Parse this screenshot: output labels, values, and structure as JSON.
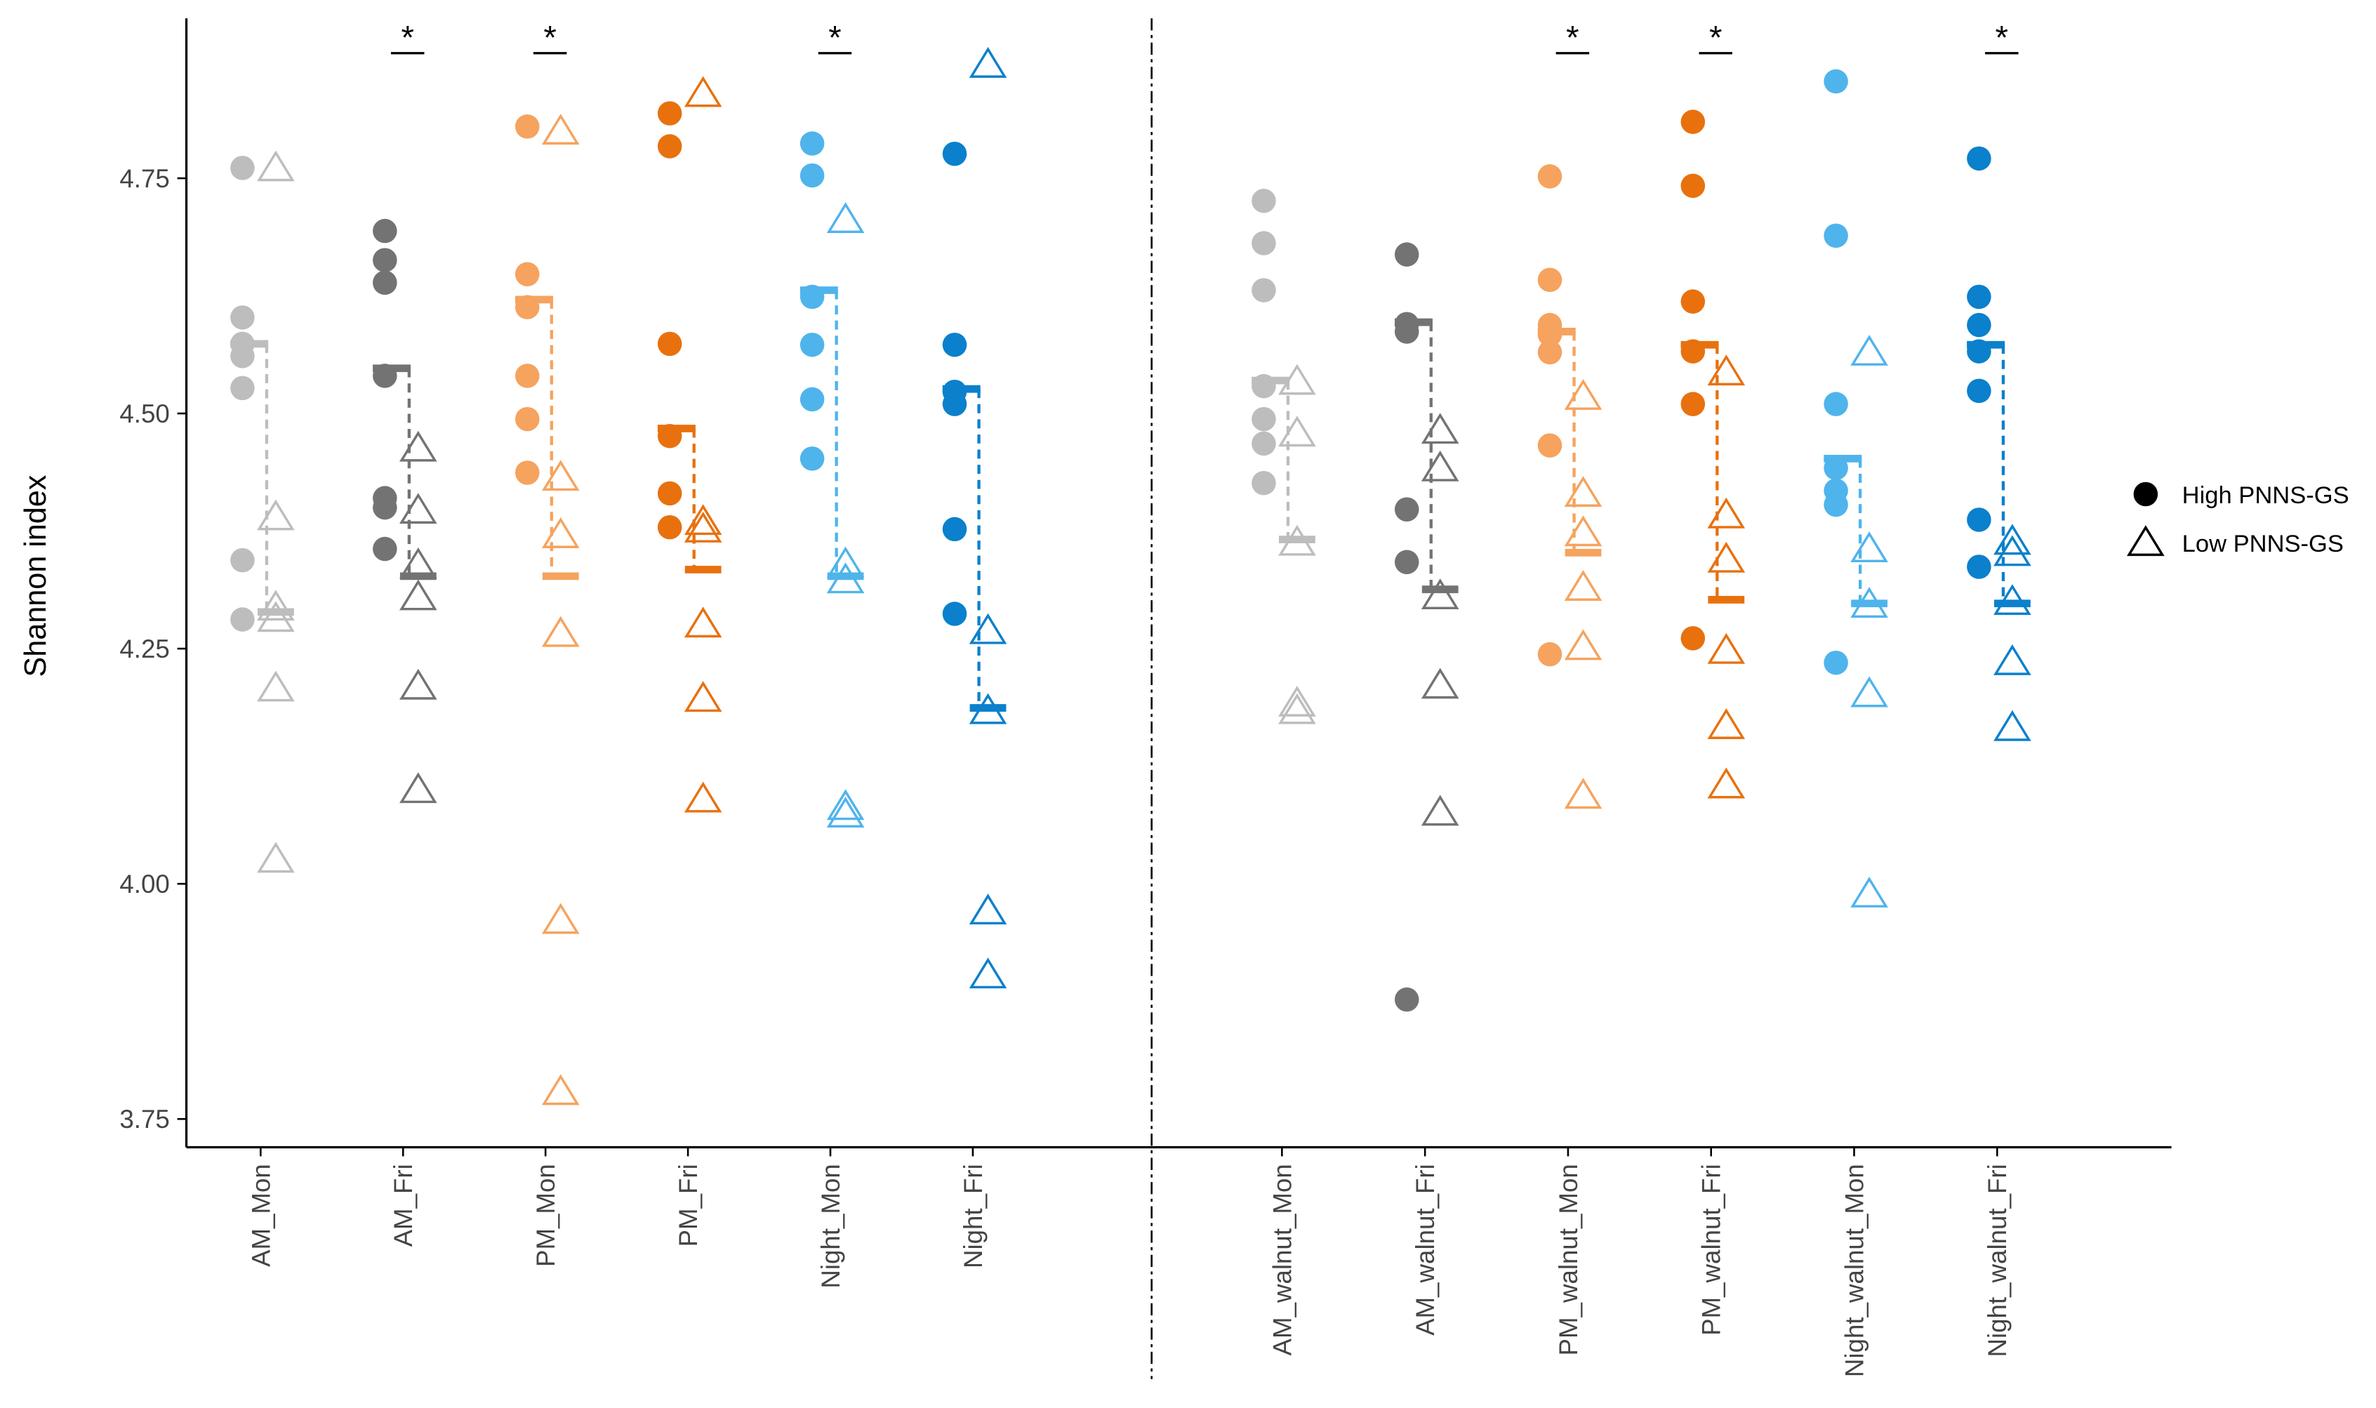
{
  "chart_data": {
    "type": "strip",
    "y_label": "Shannon index",
    "categories": [
      "AM_Mon",
      "AM_Fri",
      "PM_Mon",
      "PM_Fri",
      "Night_Mon",
      "Night_Fri",
      "AM_walnut_Mon",
      "AM_walnut_Fri",
      "PM_walnut_Mon",
      "PM_walnut_Fri",
      "Night_walnut_Mon",
      "Night_walnut_Fri"
    ],
    "colors": [
      "#bdbdbd",
      "#737373",
      "#f5a35e",
      "#e8710e",
      "#4fb4ec",
      "#0b80cc",
      "#bdbdbd",
      "#737373",
      "#f5a35e",
      "#e8710e",
      "#4fb4ec",
      "#0b80cc"
    ],
    "significance": [
      null,
      "*",
      "*",
      null,
      "*",
      null,
      null,
      null,
      "*",
      "*",
      null,
      "*"
    ],
    "ylim": [
      3.72,
      4.92
    ],
    "yticks": [
      3.75,
      {
        "value": 4,
        "label": "4.00"
      },
      4.25,
      {
        "value": 4.5,
        "label": "4.50"
      },
      4.75
    ],
    "legend_position": "right",
    "series": [
      {
        "name": "High PNNS-GS",
        "marker": "circle",
        "color": "#000000",
        "values": [
          [
            4.761,
            4.602,
            4.574,
            4.561,
            4.527,
            4.344,
            4.281
          ],
          [
            4.694,
            4.663,
            4.639,
            4.54,
            4.41,
            4.4,
            4.356
          ],
          [
            4.805,
            4.648,
            4.613,
            4.54,
            4.494,
            4.437
          ],
          [
            4.819,
            4.784,
            4.574,
            4.476,
            4.415,
            4.379
          ],
          [
            4.787,
            4.753,
            4.624,
            4.573,
            4.515,
            4.452
          ],
          [
            4.776,
            4.573,
            4.523,
            4.51,
            4.377,
            4.287
          ],
          [
            4.726,
            4.681,
            4.631,
            4.529,
            4.494,
            4.468,
            4.426
          ],
          [
            4.669,
            4.595,
            4.587,
            4.398,
            4.342,
            3.877
          ],
          [
            4.752,
            4.642,
            4.594,
            4.584,
            4.565,
            4.466,
            4.244
          ],
          [
            4.81,
            4.742,
            4.619,
            4.566,
            4.51,
            4.261
          ],
          [
            4.853,
            4.689,
            4.51,
            4.442,
            4.418,
            4.403,
            4.235
          ],
          [
            4.771,
            4.624,
            4.594,
            4.566,
            4.524,
            4.387,
            4.337
          ]
        ],
        "medians": [
          4.574,
          4.548,
          4.621,
          4.484,
          4.631,
          4.526,
          4.535,
          4.597,
          4.587,
          4.573,
          4.452,
          4.573
        ]
      },
      {
        "name": "Low PNNS-GS",
        "marker": "triangle",
        "color": "#000000",
        "values": [
          [
            4.761,
            4.39,
            4.294,
            4.282,
            4.208,
            4.026
          ],
          [
            4.463,
            4.397,
            4.339,
            4.305,
            4.21,
            4.1
          ],
          [
            4.8,
            4.432,
            4.371,
            4.266,
            3.961,
            3.779
          ],
          [
            4.84,
            4.385,
            4.377,
            4.276,
            4.197,
            4.09
          ],
          [
            4.706,
            4.34,
            4.323,
            4.082,
            4.074
          ],
          [
            4.871,
            4.269,
            4.184,
            3.971,
            3.903
          ],
          [
            4.534,
            4.479,
            4.363,
            4.192,
            4.184
          ],
          [
            4.482,
            4.442,
            4.306,
            4.211,
            4.076
          ],
          [
            4.518,
            4.415,
            4.373,
            4.315,
            4.252,
            4.094
          ],
          [
            4.544,
            4.392,
            4.345,
            4.248,
            4.168,
            4.105
          ],
          [
            4.565,
            4.356,
            4.297,
            4.202,
            3.989
          ],
          [
            4.364,
            4.352,
            4.3,
            4.236,
            4.166
          ]
        ],
        "medians": [
          4.289,
          4.327,
          4.327,
          4.334,
          4.327,
          4.187,
          4.366,
          4.313,
          4.352,
          4.302,
          4.298,
          4.298
        ]
      }
    ]
  }
}
